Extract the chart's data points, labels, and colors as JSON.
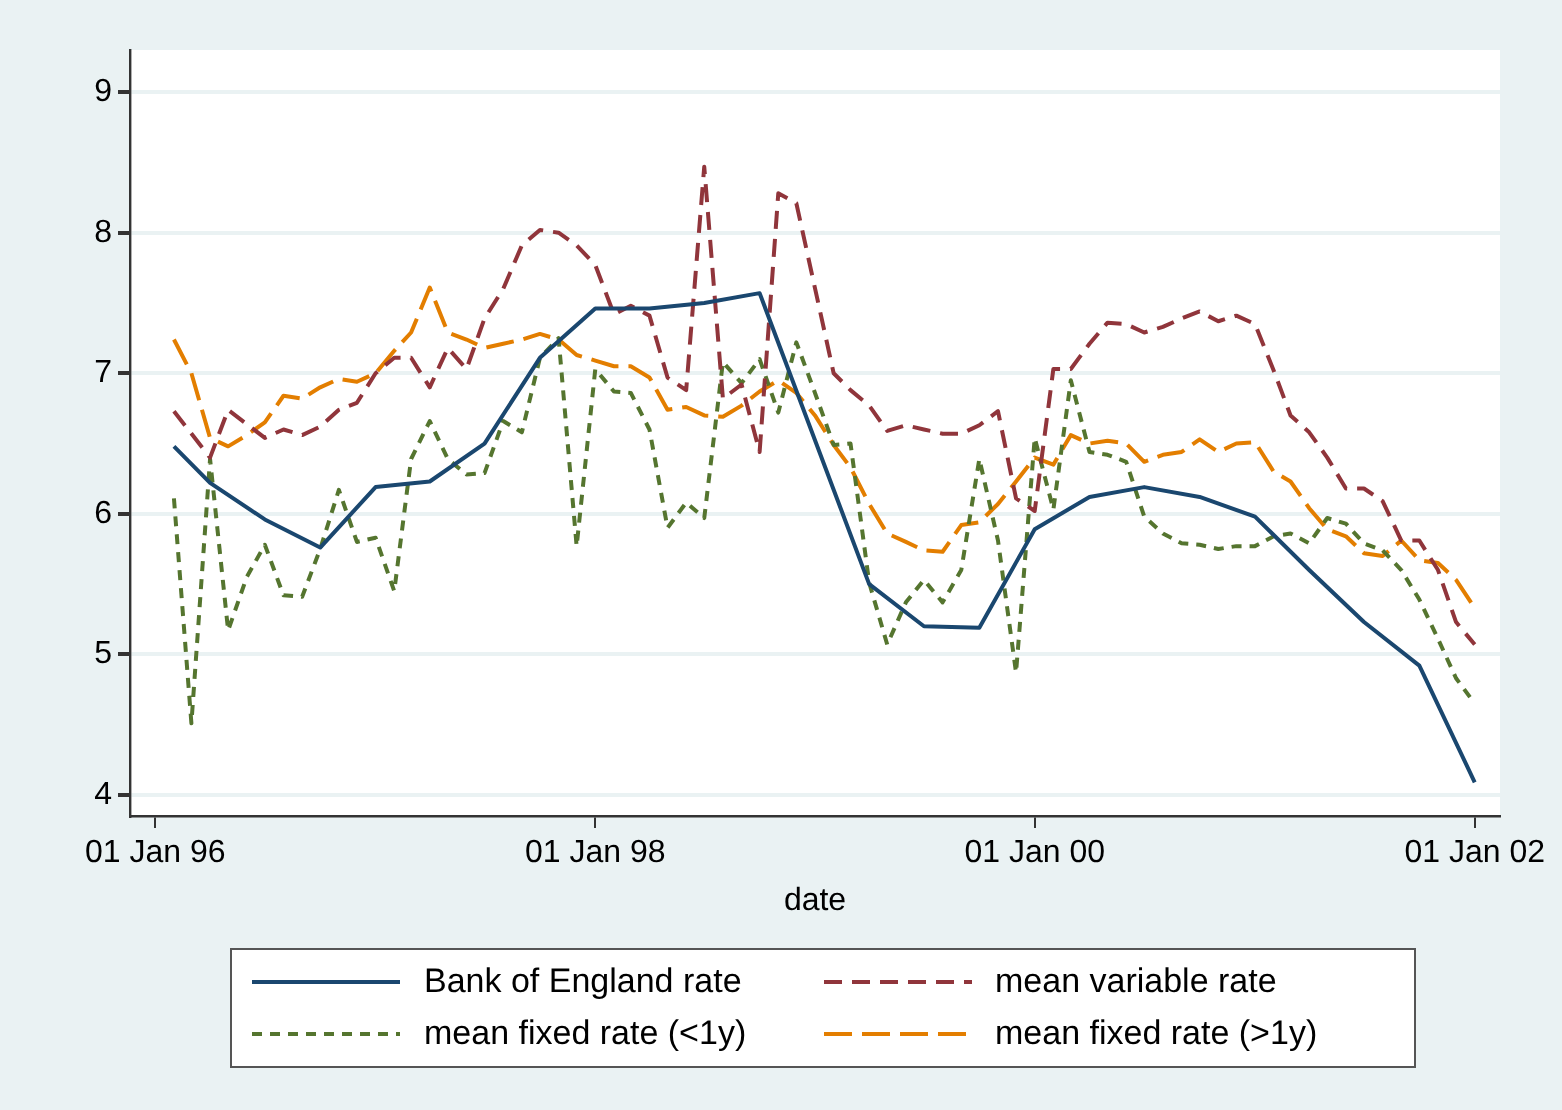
{
  "chart_data": {
    "type": "line",
    "xlabel": "date",
    "x": [
      "1996-02",
      "1996-03",
      "1996-04",
      "1996-05",
      "1996-06",
      "1996-07",
      "1996-08",
      "1996-09",
      "1996-10",
      "1996-11",
      "1996-12",
      "1997-01",
      "1997-02",
      "1997-03",
      "1997-04",
      "1997-05",
      "1997-06",
      "1997-07",
      "1997-08",
      "1997-09",
      "1997-10",
      "1997-11",
      "1997-12",
      "1998-01",
      "1998-02",
      "1998-03",
      "1998-04",
      "1998-05",
      "1998-06",
      "1998-07",
      "1998-08",
      "1998-09",
      "1998-10",
      "1998-11",
      "1998-12",
      "1999-01",
      "1999-02",
      "1999-03",
      "1999-04",
      "1999-05",
      "1999-06",
      "1999-07",
      "1999-08",
      "1999-09",
      "1999-10",
      "1999-11",
      "1999-12",
      "2000-01",
      "2000-02",
      "2000-03",
      "2000-04",
      "2000-05",
      "2000-06",
      "2000-07",
      "2000-08",
      "2000-09",
      "2000-10",
      "2000-11",
      "2000-12",
      "2001-01",
      "2001-02",
      "2001-03",
      "2001-04",
      "2001-05",
      "2001-06",
      "2001-07",
      "2001-08",
      "2001-09",
      "2001-10",
      "2001-11",
      "2001-12",
      "2002-01"
    ],
    "series": [
      {
        "name": "Bank of England rate",
        "color": "#1a476f",
        "line_style": "solid",
        "x": [
          "1996-02",
          "1996-04",
          "1996-07",
          "1996-10",
          "1997-01",
          "1997-04",
          "1997-07",
          "1997-10",
          "1998-01",
          "1998-04",
          "1998-07",
          "1998-10",
          "1999-04",
          "1999-07",
          "1999-10",
          "2000-01",
          "2000-04",
          "2000-07",
          "2000-10",
          "2001-01",
          "2001-04",
          "2001-07",
          "2001-10",
          "2002-01"
        ],
        "values": [
          6.48,
          6.22,
          5.96,
          5.76,
          6.19,
          6.23,
          6.5,
          7.11,
          7.46,
          7.46,
          7.5,
          7.57,
          5.5,
          5.2,
          5.19,
          5.89,
          6.12,
          6.19,
          6.12,
          5.98,
          5.6,
          5.23,
          4.92,
          4.09
        ]
      },
      {
        "name": "mean variable rate",
        "color": "#90353b",
        "line_style": "dashed",
        "x": [
          "1996-02",
          "1996-04",
          "1996-05",
          "1996-07",
          "1996-08",
          "1996-09",
          "1996-10",
          "1996-11",
          "1996-12",
          "1997-01",
          "1997-02",
          "1997-03",
          "1997-04",
          "1997-05",
          "1997-06",
          "1997-07",
          "1997-08",
          "1997-09",
          "1997-10",
          "1997-11",
          "1997-12",
          "1998-01",
          "1998-02",
          "1998-03",
          "1998-04",
          "1998-05",
          "1998-06",
          "1998-07",
          "1998-08",
          "1998-09",
          "1998-10",
          "1998-11",
          "1998-12",
          "1999-02",
          "1999-03",
          "1999-04",
          "1999-05",
          "1999-06",
          "1999-07",
          "1999-08",
          "1999-09",
          "1999-10",
          "1999-11",
          "1999-12",
          "2000-01",
          "2000-02",
          "2000-03",
          "2000-04",
          "2000-05",
          "2000-06",
          "2000-07",
          "2000-08",
          "2000-09",
          "2000-10",
          "2000-11",
          "2000-12",
          "2001-01",
          "2001-02",
          "2001-03",
          "2001-04",
          "2001-05",
          "2001-06",
          "2001-07",
          "2001-08",
          "2001-09",
          "2001-10",
          "2001-11",
          "2001-12",
          "2002-01"
        ],
        "values": [
          6.73,
          6.4,
          6.74,
          6.54,
          6.6,
          6.56,
          6.62,
          6.74,
          6.79,
          7.0,
          7.11,
          7.11,
          6.9,
          7.18,
          7.03,
          7.39,
          7.6,
          7.91,
          8.02,
          8.0,
          7.91,
          7.77,
          7.42,
          7.48,
          7.41,
          6.97,
          6.88,
          8.47,
          6.82,
          6.92,
          6.44,
          8.28,
          8.21,
          7.0,
          6.88,
          6.77,
          6.59,
          6.63,
          6.6,
          6.57,
          6.57,
          6.63,
          6.73,
          6.11,
          6.02,
          7.03,
          7.03,
          7.21,
          7.36,
          7.35,
          7.29,
          7.33,
          7.39,
          7.44,
          7.37,
          7.41,
          7.35,
          7.02,
          6.7,
          6.58,
          6.4,
          6.18,
          6.18,
          6.09,
          5.81,
          5.81,
          5.6,
          5.23,
          5.07
        ]
      },
      {
        "name": "mean fixed rate (<1y)",
        "color": "#55752f",
        "line_style": "dashed",
        "values": [
          6.11,
          4.51,
          6.39,
          5.17,
          5.55,
          5.78,
          5.42,
          5.41,
          5.75,
          6.17,
          5.8,
          5.83,
          5.45,
          6.39,
          6.66,
          6.39,
          6.28,
          6.29,
          6.66,
          6.58,
          7.11,
          7.25,
          5.77,
          7.03,
          6.87,
          6.86,
          6.6,
          5.9,
          6.08,
          5.97,
          7.08,
          6.93,
          7.1,
          6.72,
          7.22,
          6.86,
          6.49,
          6.5,
          5.51,
          5.07,
          5.37,
          5.53,
          5.37,
          5.6,
          6.39,
          5.81,
          4.87,
          6.54,
          6.03,
          6.95,
          6.44,
          6.42,
          6.37,
          5.98,
          5.86,
          5.79,
          5.78,
          5.75,
          5.77,
          5.77,
          5.84,
          5.86,
          5.79,
          5.97,
          5.93,
          5.79,
          5.74,
          5.6,
          5.39,
          5.11,
          4.83,
          4.65
        ]
      },
      {
        "name": "mean fixed rate (>1y)",
        "color": "#e37e00",
        "line_style": "dashed",
        "values": [
          7.24,
          7.0,
          6.54,
          6.48,
          6.56,
          6.65,
          6.84,
          6.82,
          6.9,
          6.96,
          6.94,
          7.0,
          7.16,
          7.29,
          7.61,
          7.29,
          7.24,
          7.18,
          7.21,
          7.24,
          7.28,
          7.24,
          7.13,
          7.09,
          7.05,
          7.05,
          6.97,
          6.74,
          6.76,
          6.7,
          6.69,
          6.77,
          6.87,
          6.95,
          6.86,
          6.7,
          6.49,
          6.33,
          6.07,
          5.86,
          5.8,
          5.74,
          5.73,
          5.92,
          5.94,
          6.07,
          6.23,
          6.4,
          6.35,
          6.56,
          6.5,
          6.52,
          6.5,
          6.37,
          6.42,
          6.44,
          6.53,
          6.44,
          6.5,
          6.51,
          6.3,
          6.23,
          6.04,
          5.89,
          5.84,
          5.72,
          5.7,
          5.81,
          5.67,
          5.65,
          5.53,
          5.33
        ]
      }
    ],
    "xlim": [
      "1995-11-20",
      "2002-02-12"
    ],
    "xticks": [
      {
        "value": "1996-01-01",
        "label": "01 Jan 96"
      },
      {
        "value": "1998-01-01",
        "label": "01 Jan 98"
      },
      {
        "value": "2000-01-01",
        "label": "01 Jan 00"
      },
      {
        "value": "2002-01-01",
        "label": "01 Jan 02"
      }
    ],
    "ylim": [
      3.85,
      9.3
    ],
    "yticks": [
      4,
      5,
      6,
      7,
      8,
      9
    ],
    "grid": "y",
    "legend": "bottom",
    "marker": "none"
  }
}
